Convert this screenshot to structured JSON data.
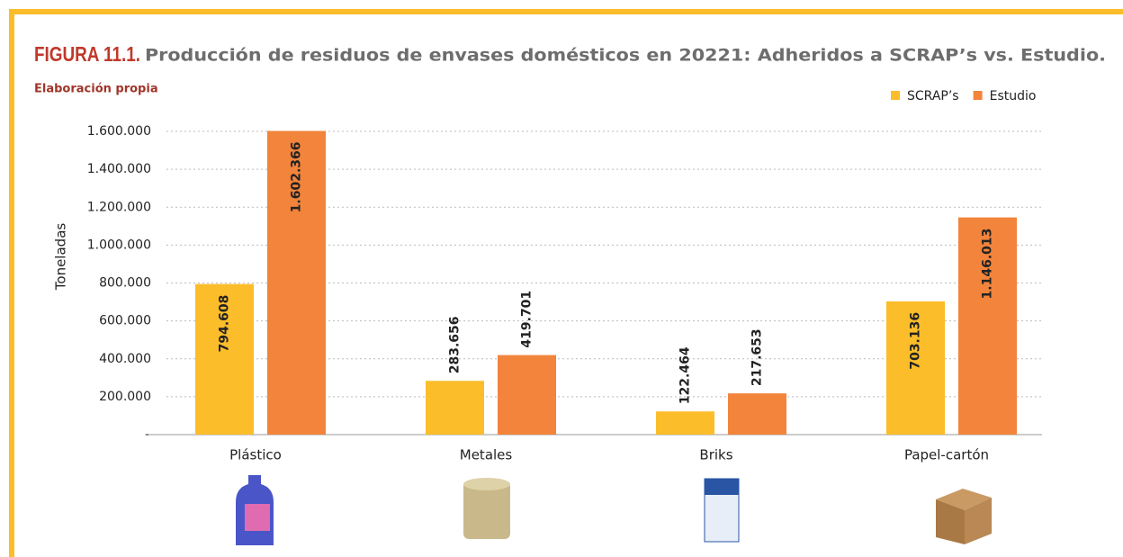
{
  "chart_data": {
    "type": "bar",
    "title_prefix": "FIGURA 11.1.",
    "title": "Producción de residuos de envases domésticos en 20221: Adheridos a SCRAP’s vs. Estudio.",
    "subtitle": "Elaboración propia",
    "y_label": "Toneladas",
    "categories": [
      "Plástico",
      "Metales",
      "Briks",
      "Papel-cartón"
    ],
    "series": [
      {
        "name": "SCRAP’s",
        "color": "#fbbd2a",
        "values": [
          794608,
          283656,
          122464,
          703136
        ],
        "value_labels": [
          "794.608",
          "283.656",
          "122.464",
          "703.136"
        ]
      },
      {
        "name": "Estudio",
        "color": "#f2843c",
        "values": [
          1602366,
          419701,
          217653,
          1146013
        ],
        "value_labels": [
          "1.602.366",
          "419.701",
          "217.653",
          "1.146.013"
        ]
      }
    ],
    "ylim": [
      0,
      1600000
    ],
    "yticks": [
      {
        "value": 0,
        "label": "–"
      },
      {
        "value": 200000,
        "label": "200.000"
      },
      {
        "value": 400000,
        "label": "400.000"
      },
      {
        "value": 600000,
        "label": "600.000"
      },
      {
        "value": 800000,
        "label": "800.000"
      },
      {
        "value": 1000000,
        "label": "1.000.000"
      },
      {
        "value": 1200000,
        "label": "1.200.000"
      },
      {
        "value": 1400000,
        "label": "1.400.000"
      },
      {
        "value": 1600000,
        "label": "1.600.000"
      }
    ],
    "grid": true,
    "legend": "top-right"
  }
}
